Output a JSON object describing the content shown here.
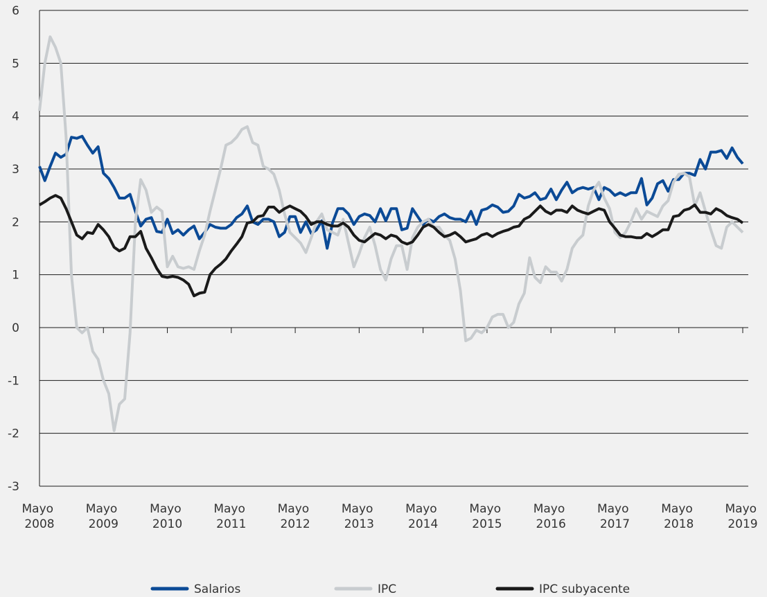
{
  "chart_data": {
    "type": "line",
    "categories": [
      "Mayo 2008",
      null,
      null,
      null,
      null,
      null,
      null,
      null,
      null,
      null,
      null,
      null,
      "Mayo 2009",
      null,
      null,
      null,
      null,
      null,
      null,
      null,
      null,
      null,
      null,
      null,
      "Mayo 2010",
      null,
      null,
      null,
      null,
      null,
      null,
      null,
      null,
      null,
      null,
      null,
      "Mayo 2011",
      null,
      null,
      null,
      null,
      null,
      null,
      null,
      null,
      null,
      null,
      null,
      "Mayo 2012",
      null,
      null,
      null,
      null,
      null,
      null,
      null,
      null,
      null,
      null,
      null,
      "Mayo 2013",
      null,
      null,
      null,
      null,
      null,
      null,
      null,
      null,
      null,
      null,
      null,
      "Mayo 2014",
      null,
      null,
      null,
      null,
      null,
      null,
      null,
      null,
      null,
      null,
      null,
      "Mayo 2015",
      null,
      null,
      null,
      null,
      null,
      null,
      null,
      null,
      null,
      null,
      null,
      "Mayo 2016",
      null,
      null,
      null,
      null,
      null,
      null,
      null,
      null,
      null,
      null,
      null,
      "Mayo 2017",
      null,
      null,
      null,
      null,
      null,
      null,
      null,
      null,
      null,
      null,
      null,
      "Mayo 2018",
      null,
      null,
      null,
      null,
      null,
      null,
      null,
      null,
      null,
      null,
      null,
      "Mayo 2019"
    ],
    "series": [
      {
        "name": "Salarios",
        "color": "#0b4a96",
        "values": [
          3.05,
          2.78,
          3.05,
          3.3,
          3.22,
          3.28,
          3.6,
          3.58,
          3.62,
          3.45,
          3.3,
          3.42,
          2.92,
          2.82,
          2.65,
          2.45,
          2.45,
          2.52,
          2.2,
          1.92,
          2.05,
          2.08,
          1.82,
          1.8,
          2.05,
          1.78,
          1.85,
          1.75,
          1.85,
          1.92,
          1.68,
          1.8,
          1.95,
          1.9,
          1.88,
          1.88,
          1.95,
          2.08,
          2.15,
          2.3,
          2.0,
          1.95,
          2.05,
          2.05,
          2.0,
          1.72,
          1.8,
          2.1,
          2.1,
          1.8,
          2.0,
          1.78,
          1.85,
          2.02,
          1.5,
          1.98,
          2.25,
          2.25,
          2.15,
          1.95,
          2.1,
          2.15,
          2.12,
          2.0,
          2.25,
          2.02,
          2.25,
          2.25,
          1.85,
          1.88,
          2.25,
          2.1,
          1.95,
          2.05,
          2.0,
          2.1,
          2.15,
          2.08,
          2.05,
          2.05,
          2.0,
          2.2,
          1.95,
          2.22,
          2.25,
          2.32,
          2.28,
          2.18,
          2.2,
          2.3,
          2.52,
          2.45,
          2.48,
          2.55,
          2.42,
          2.45,
          2.62,
          2.42,
          2.6,
          2.75,
          2.55,
          2.62,
          2.65,
          2.62,
          2.65,
          2.42,
          2.65,
          2.6,
          2.5,
          2.55,
          2.5,
          2.55,
          2.55,
          2.82,
          2.32,
          2.45,
          2.72,
          2.78,
          2.58,
          2.8,
          2.8,
          2.92,
          2.92,
          2.88,
          3.18,
          3.0,
          3.32,
          3.32,
          3.35,
          3.2,
          3.4,
          3.22,
          3.1
        ]
      },
      {
        "name": "IPC",
        "color": "#c8cccf",
        "values": [
          4.1,
          5.0,
          5.5,
          5.3,
          5.0,
          3.6,
          1.0,
          0.0,
          -0.1,
          0.0,
          -0.45,
          -0.6,
          -1.0,
          -1.25,
          -1.95,
          -1.45,
          -1.35,
          -0.1,
          2.0,
          2.8,
          2.6,
          2.18,
          2.28,
          2.2,
          1.15,
          1.35,
          1.15,
          1.12,
          1.15,
          1.1,
          1.45,
          1.75,
          2.2,
          2.6,
          3.0,
          3.45,
          3.5,
          3.6,
          3.75,
          3.8,
          3.5,
          3.45,
          3.05,
          3.0,
          2.9,
          2.6,
          2.15,
          1.8,
          1.7,
          1.6,
          1.42,
          1.7,
          2.0,
          2.15,
          1.85,
          1.8,
          1.75,
          2.05,
          1.6,
          1.15,
          1.4,
          1.7,
          1.9,
          1.55,
          1.1,
          0.9,
          1.3,
          1.55,
          1.55,
          1.1,
          1.7,
          1.9,
          2.0,
          2.05,
          1.9,
          1.9,
          1.75,
          1.65,
          1.3,
          0.7,
          -0.25,
          -0.2,
          -0.05,
          -0.1,
          0.0,
          0.2,
          0.25,
          0.25,
          0.0,
          0.1,
          0.45,
          0.65,
          1.32,
          0.95,
          0.85,
          1.15,
          1.05,
          1.05,
          0.88,
          1.1,
          1.5,
          1.65,
          1.75,
          2.3,
          2.6,
          2.75,
          2.45,
          2.25,
          1.8,
          1.7,
          1.8,
          2.0,
          2.25,
          2.05,
          2.2,
          2.15,
          2.1,
          2.3,
          2.4,
          2.75,
          2.9,
          2.92,
          2.85,
          2.3,
          2.55,
          2.2,
          1.85,
          1.55,
          1.5,
          1.9,
          2.0,
          1.9,
          1.8
        ]
      },
      {
        "name": "IPC subyacente",
        "color": "#1a1a1a",
        "values": [
          2.32,
          2.38,
          2.45,
          2.5,
          2.45,
          2.25,
          2.0,
          1.75,
          1.68,
          1.8,
          1.78,
          1.95,
          1.85,
          1.72,
          1.52,
          1.45,
          1.5,
          1.72,
          1.72,
          1.82,
          1.5,
          1.32,
          1.12,
          0.97,
          0.95,
          0.97,
          0.95,
          0.9,
          0.82,
          0.6,
          0.65,
          0.67,
          1.0,
          1.12,
          1.2,
          1.3,
          1.45,
          1.58,
          1.72,
          1.98,
          2.0,
          2.1,
          2.12,
          2.28,
          2.28,
          2.18,
          2.25,
          2.3,
          2.25,
          2.2,
          2.1,
          1.95,
          2.0,
          2.0,
          1.95,
          1.92,
          1.92,
          1.98,
          1.9,
          1.75,
          1.65,
          1.62,
          1.7,
          1.78,
          1.75,
          1.68,
          1.75,
          1.72,
          1.62,
          1.58,
          1.62,
          1.75,
          1.9,
          1.95,
          1.9,
          1.8,
          1.72,
          1.75,
          1.8,
          1.72,
          1.62,
          1.65,
          1.68,
          1.75,
          1.78,
          1.72,
          1.78,
          1.82,
          1.85,
          1.9,
          1.92,
          2.05,
          2.1,
          2.2,
          2.3,
          2.2,
          2.15,
          2.22,
          2.22,
          2.18,
          2.3,
          2.22,
          2.18,
          2.15,
          2.2,
          2.25,
          2.22,
          2.0,
          1.88,
          1.75,
          1.72,
          1.72,
          1.7,
          1.7,
          1.78,
          1.72,
          1.78,
          1.85,
          1.85,
          2.1,
          2.12,
          2.22,
          2.25,
          2.32,
          2.18,
          2.18,
          2.15,
          2.25,
          2.2,
          2.12,
          2.08,
          2.05,
          1.98
        ]
      }
    ],
    "ylim": [
      -3,
      6
    ],
    "yticks": [
      -3,
      -2,
      -1,
      0,
      1,
      2,
      3,
      4,
      5,
      6
    ],
    "grid": true,
    "legend": "bottom"
  }
}
